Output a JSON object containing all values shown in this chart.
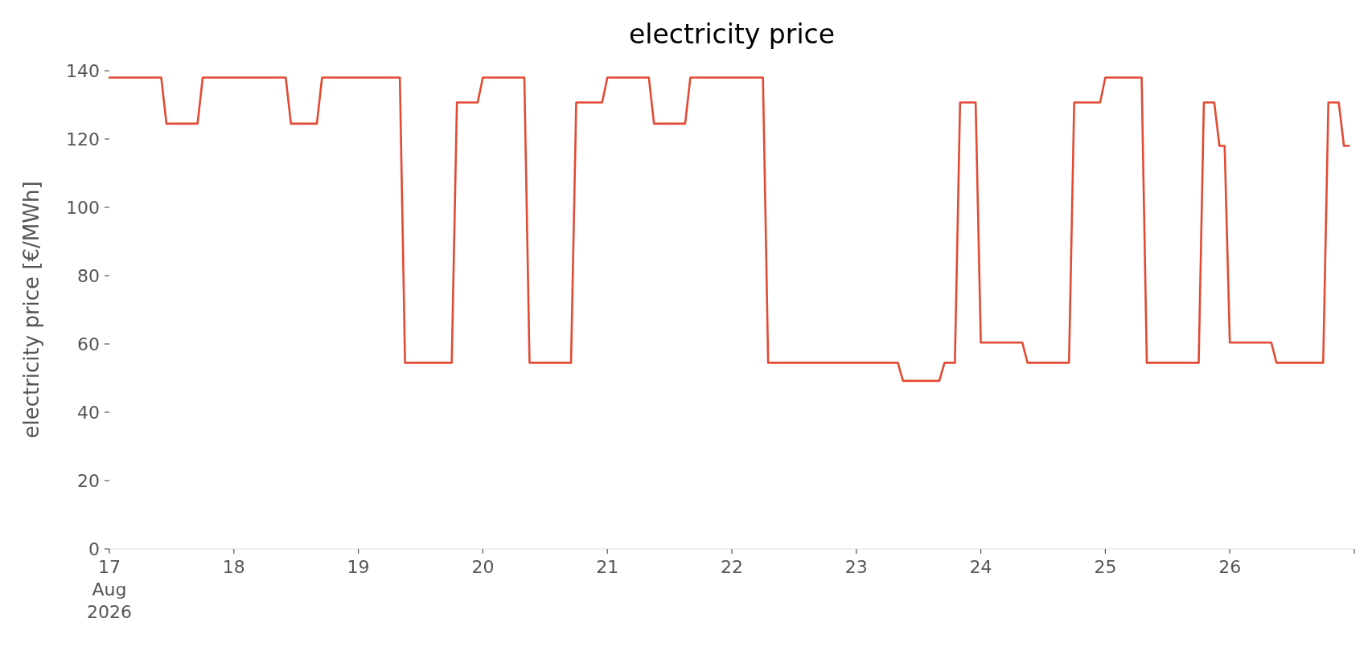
{
  "chart_data": {
    "type": "line",
    "title": "electricity price",
    "ylabel": "electricity price [€/MWh]",
    "x": [
      "2026-08-17T00:00",
      "2026-08-17T10:00",
      "2026-08-17T11:00",
      "2026-08-17T17:00",
      "2026-08-17T18:00",
      "2026-08-18T10:00",
      "2026-08-18T11:00",
      "2026-08-18T16:00",
      "2026-08-18T17:00",
      "2026-08-19T08:00",
      "2026-08-19T09:00",
      "2026-08-19T18:00",
      "2026-08-19T19:00",
      "2026-08-19T23:00",
      "2026-08-20T00:00",
      "2026-08-20T08:00",
      "2026-08-20T09:00",
      "2026-08-20T17:00",
      "2026-08-20T18:00",
      "2026-08-20T23:00",
      "2026-08-21T00:00",
      "2026-08-21T08:00",
      "2026-08-21T09:00",
      "2026-08-21T15:00",
      "2026-08-21T16:00",
      "2026-08-22T06:00",
      "2026-08-22T07:00",
      "2026-08-23T08:00",
      "2026-08-23T09:00",
      "2026-08-23T16:00",
      "2026-08-23T17:00",
      "2026-08-23T19:00",
      "2026-08-23T20:00",
      "2026-08-23T23:00",
      "2026-08-24T00:00",
      "2026-08-24T08:00",
      "2026-08-24T09:00",
      "2026-08-24T17:00",
      "2026-08-24T18:00",
      "2026-08-24T23:00",
      "2026-08-25T00:00",
      "2026-08-25T07:00",
      "2026-08-25T08:00",
      "2026-08-25T18:00",
      "2026-08-25T19:00",
      "2026-08-25T21:00",
      "2026-08-25T22:00",
      "2026-08-25T23:00",
      "2026-08-26T00:00",
      "2026-08-26T08:00",
      "2026-08-26T09:00",
      "2026-08-26T18:00",
      "2026-08-26T19:00",
      "2026-08-26T21:00",
      "2026-08-26T22:00",
      "2026-08-26T23:00"
    ],
    "series": [
      {
        "color": "#e24a33",
        "values": [
          138,
          138,
          124.5,
          124.5,
          138,
          138,
          124.5,
          124.5,
          138,
          138,
          54.5,
          54.5,
          130.7,
          130.7,
          138,
          138,
          54.5,
          54.5,
          130.7,
          130.7,
          138,
          138,
          124.5,
          124.5,
          138,
          138,
          54.5,
          54.5,
          49.2,
          49.2,
          54.5,
          54.5,
          130.7,
          130.7,
          60.4,
          60.4,
          54.5,
          54.5,
          130.7,
          130.7,
          138,
          138,
          54.5,
          54.5,
          130.7,
          130.7,
          118,
          118,
          60.4,
          60.4,
          54.5,
          54.5,
          130.7,
          130.7,
          118,
          118
        ]
      }
    ],
    "xlim": [
      "2026-08-17T00:00",
      "2026-08-27T00:00"
    ],
    "xticks": [
      {
        "value": "2026-08-17",
        "label": "17\nAug\n2026"
      },
      {
        "value": "2026-08-18",
        "label": "18"
      },
      {
        "value": "2026-08-19",
        "label": "19"
      },
      {
        "value": "2026-08-20",
        "label": "20"
      },
      {
        "value": "2026-08-21",
        "label": "21"
      },
      {
        "value": "2026-08-22",
        "label": "22"
      },
      {
        "value": "2026-08-23",
        "label": "23"
      },
      {
        "value": "2026-08-24",
        "label": "24"
      },
      {
        "value": "2026-08-25",
        "label": "25"
      },
      {
        "value": "2026-08-26",
        "label": "26"
      },
      {
        "value": "2026-08-27",
        "label": null
      }
    ],
    "ylim": [
      0,
      140
    ],
    "yticks": [
      0,
      20,
      40,
      60,
      80,
      100,
      120,
      140
    ]
  }
}
